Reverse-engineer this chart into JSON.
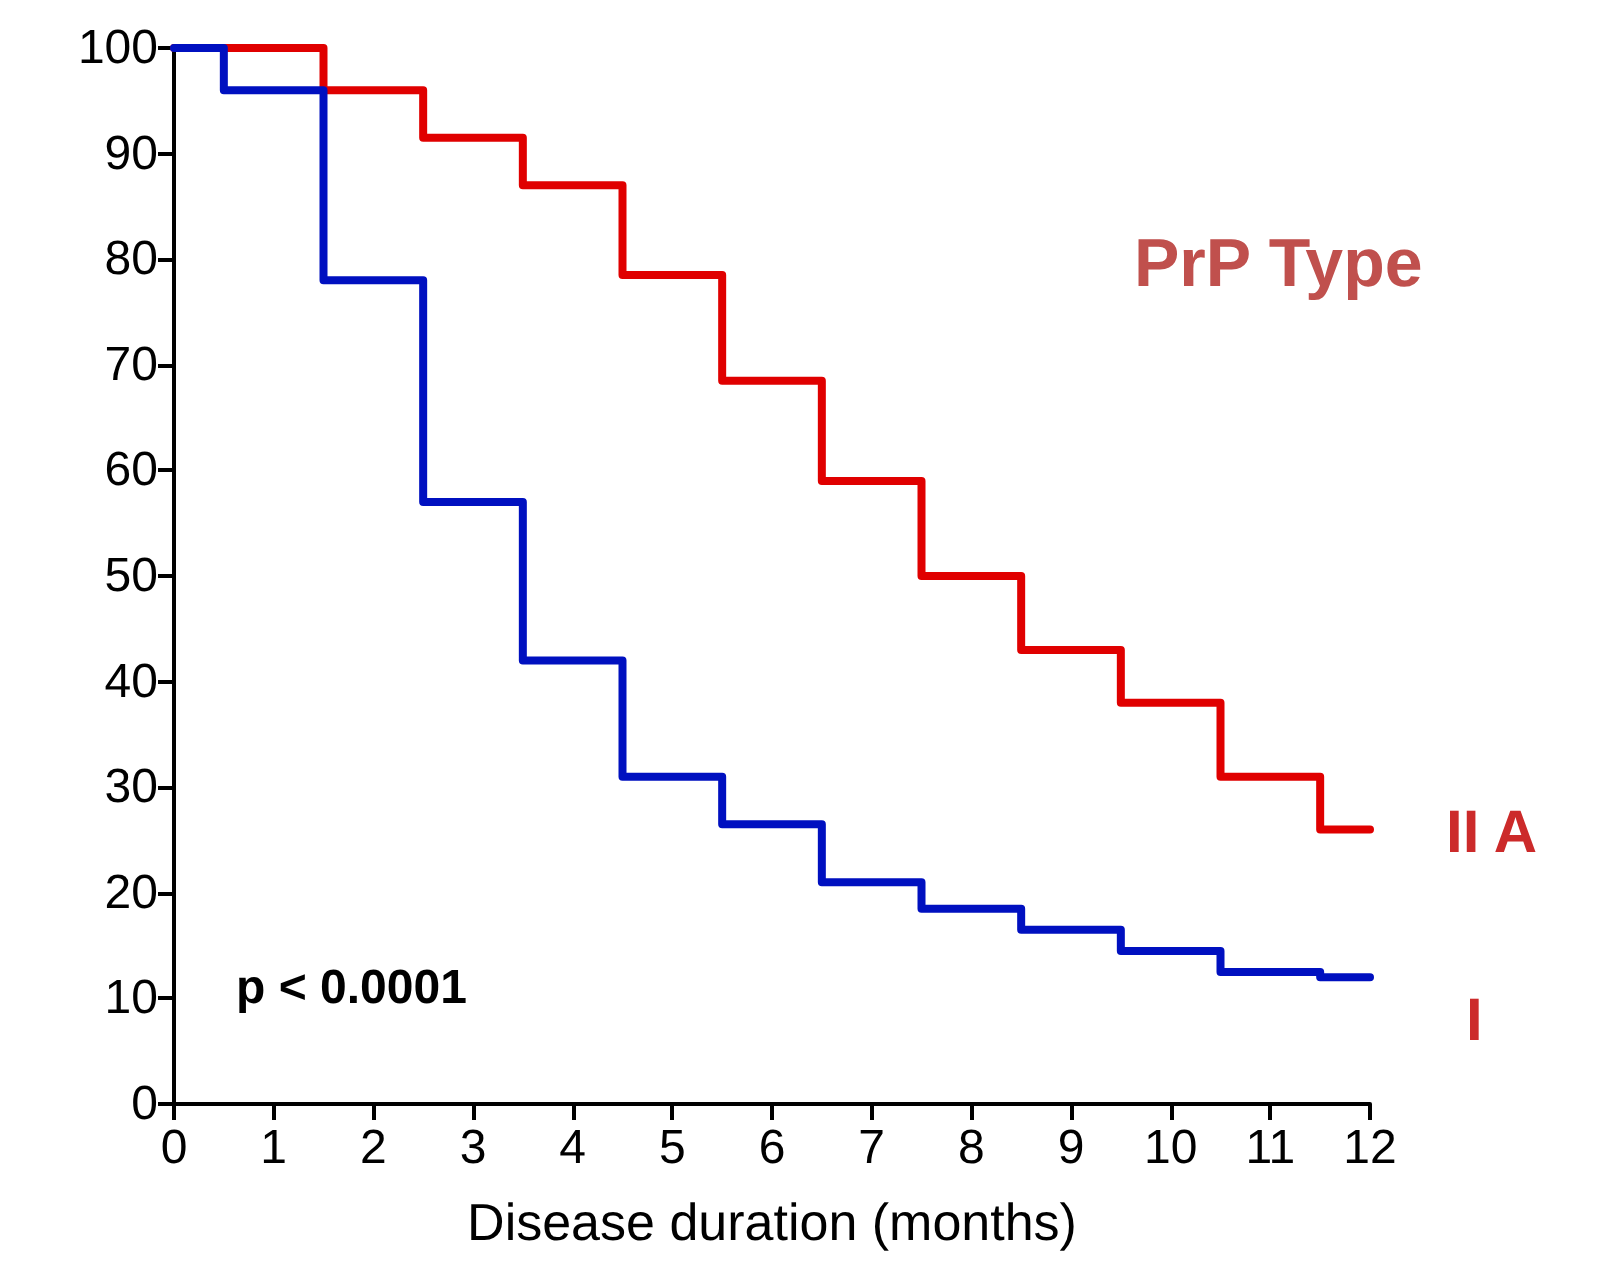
{
  "chart_data": {
    "type": "step",
    "xlabel": "Disease duration (months)",
    "legend_title": "PrP Type",
    "annotations": [
      "p < 0.0001"
    ],
    "xlim": [
      0,
      12
    ],
    "xticks": [
      0,
      1,
      2,
      3,
      4,
      5,
      6,
      7,
      8,
      9,
      10,
      11,
      12
    ],
    "ylim": [
      0,
      100
    ],
    "yticks": [
      0,
      10,
      20,
      30,
      40,
      50,
      60,
      70,
      80,
      90,
      100
    ],
    "grid": false,
    "legend": false,
    "marker": "none",
    "line_style": "solid",
    "series": [
      {
        "name": "II A",
        "color": "#e00000",
        "x": [
          0,
          1.5,
          2.5,
          3.5,
          4.5,
          5.5,
          6.5,
          7.5,
          8.5,
          9.5,
          10.5,
          11.5,
          12
        ],
        "values": [
          100,
          96,
          91.5,
          87,
          78.5,
          68.5,
          59,
          50,
          43,
          38,
          31,
          26,
          26
        ]
      },
      {
        "name": "I",
        "color": "#0010c0",
        "x": [
          0,
          0.5,
          1.5,
          2.5,
          3.5,
          4.5,
          5.5,
          6.5,
          7.5,
          8.5,
          9.5,
          10.5,
          11.5,
          12
        ],
        "values": [
          100,
          96,
          78,
          57,
          42,
          31,
          26.5,
          21,
          18.5,
          16.5,
          14.5,
          12.5,
          12,
          12
        ]
      }
    ]
  }
}
